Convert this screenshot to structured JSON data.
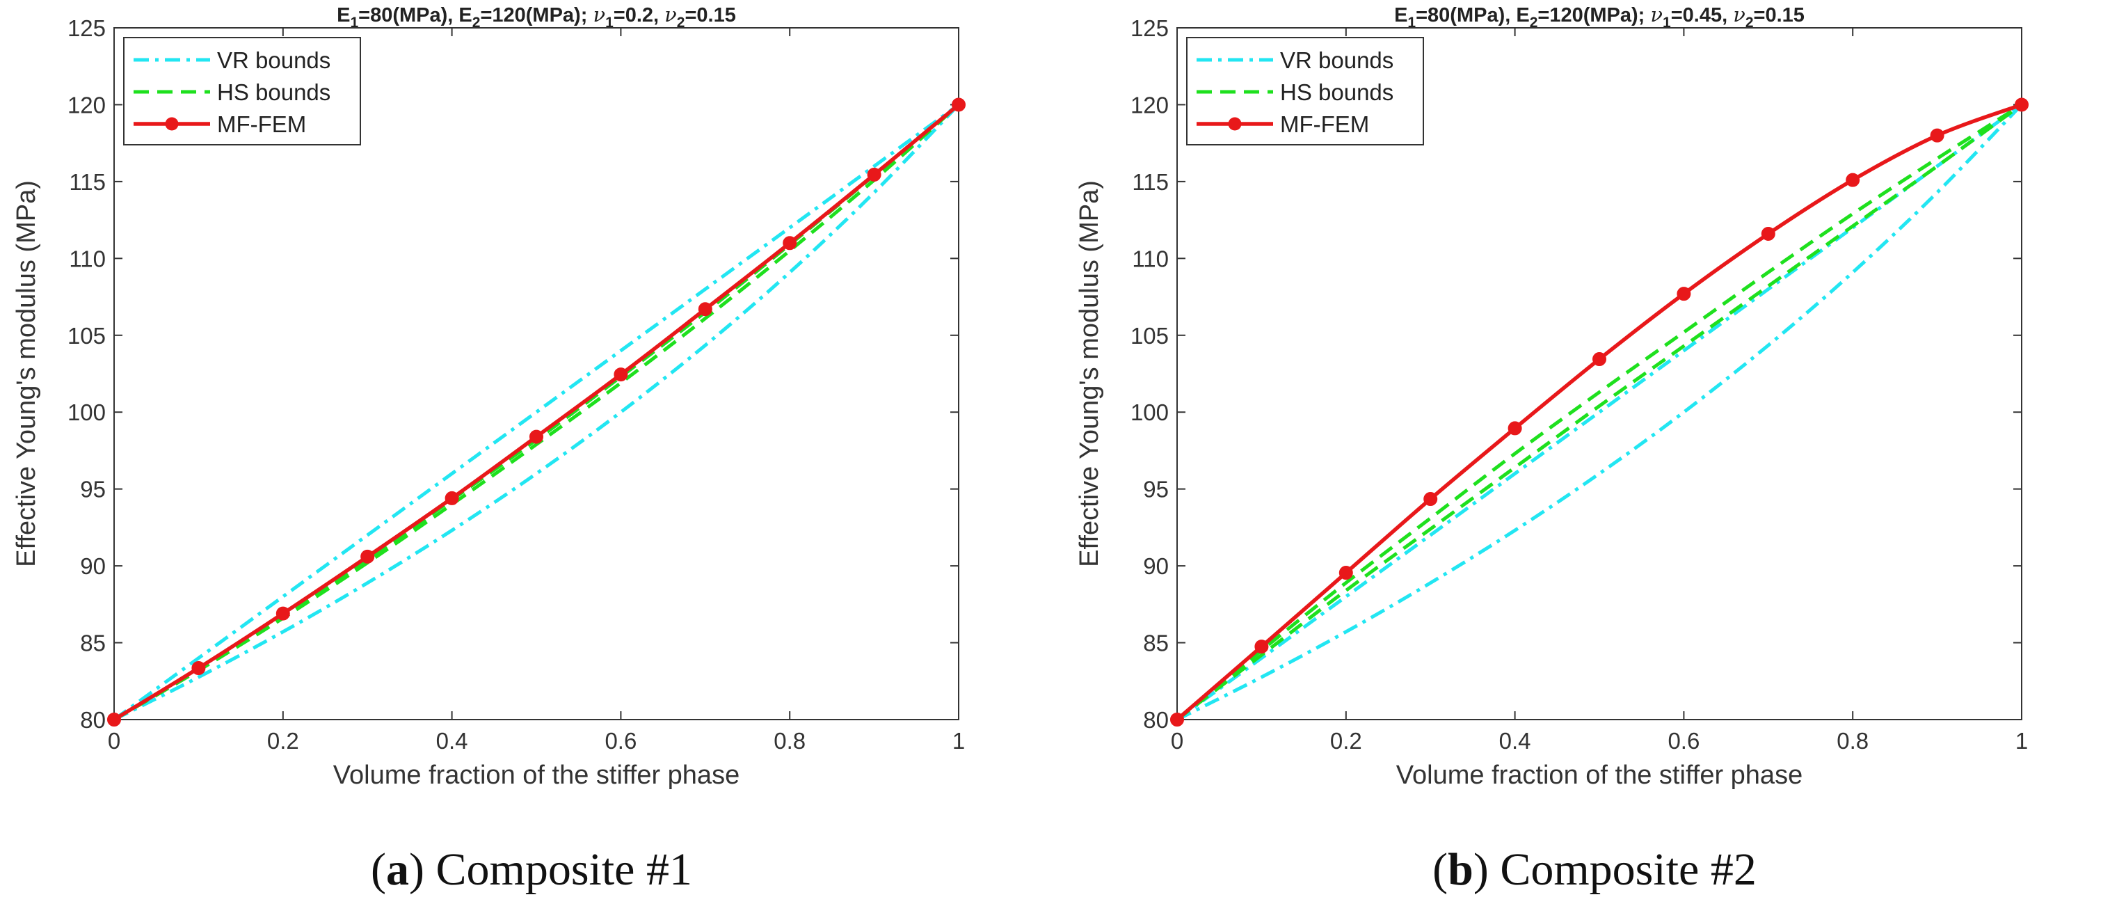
{
  "chart_data": [
    {
      "type": "line",
      "title_parts": {
        "e1_sym": "E",
        "e1_sub": "1",
        "e1_val": "=80(MPa), ",
        "e2_sym": "E",
        "e2_sub": "2",
        "e2_val": "=120(MPa); ",
        "nu1_sym": "ν",
        "nu1_sub": "1",
        "nu1_val": "=0.2, ",
        "nu2_sym": "ν",
        "nu2_sub": "2",
        "nu2_val": "=0.15"
      },
      "xlabel": "Volume fraction of the stiffer phase",
      "ylabel": "Effective Young's modulus (MPa)",
      "xlim": [
        0,
        1
      ],
      "ylim": [
        80,
        125
      ],
      "xticks": [
        0,
        0.2,
        0.4,
        0.6,
        0.8,
        1
      ],
      "xtick_labels": [
        "0",
        "0.2",
        "0.4",
        "0.6",
        "0.8",
        "1"
      ],
      "yticks": [
        80,
        85,
        90,
        95,
        100,
        105,
        110,
        115,
        120,
        125
      ],
      "ytick_labels": [
        "80",
        "85",
        "90",
        "95",
        "100",
        "105",
        "110",
        "115",
        "120",
        "125"
      ],
      "x": [
        0,
        0.1,
        0.2,
        0.3,
        0.4,
        0.5,
        0.6,
        0.7,
        0.8,
        0.9,
        1
      ],
      "legend_position": "top-left",
      "series": [
        {
          "name": "VR bounds",
          "role": "upper",
          "legend": true,
          "style": "dashdot",
          "color": "#22e6f2",
          "values": [
            80,
            84,
            88,
            92,
            96,
            100,
            104,
            108,
            112,
            116,
            120
          ]
        },
        {
          "name": "VR bounds",
          "role": "lower",
          "legend": false,
          "style": "dashdot",
          "color": "#22e6f2",
          "values": [
            80,
            82.76,
            85.71,
            88.89,
            92.31,
            96.0,
            100.0,
            104.35,
            109.09,
            114.29,
            120
          ]
        },
        {
          "name": "HS bounds",
          "role": "upper",
          "legend": true,
          "style": "dashed",
          "color": "#1ee01e",
          "values": [
            80,
            83.3,
            86.8,
            90.4,
            94.3,
            98.2,
            102.3,
            106.5,
            110.9,
            115.4,
            120
          ]
        },
        {
          "name": "HS bounds",
          "role": "lower",
          "legend": false,
          "style": "dashed",
          "color": "#1ee01e",
          "values": [
            80,
            83.2,
            86.6,
            90.2,
            94.0,
            97.9,
            101.9,
            106.1,
            110.5,
            115.1,
            120
          ]
        },
        {
          "name": "MF-FEM",
          "role": "result",
          "legend": true,
          "style": "solid-marker",
          "color": "#e8181a",
          "values": [
            80,
            83.35,
            86.9,
            90.6,
            94.4,
            98.4,
            102.45,
            106.7,
            111.0,
            115.45,
            120
          ]
        }
      ],
      "caption": {
        "letter": "a",
        "text": " Composite #1"
      }
    },
    {
      "type": "line",
      "title_parts": {
        "e1_sym": "E",
        "e1_sub": "1",
        "e1_val": "=80(MPa), ",
        "e2_sym": "E",
        "e2_sub": "2",
        "e2_val": "=120(MPa); ",
        "nu1_sym": "ν",
        "nu1_sub": "1",
        "nu1_val": "=0.45, ",
        "nu2_sym": "ν",
        "nu2_sub": "2",
        "nu2_val": "=0.15"
      },
      "xlabel": "Volume fraction of the stiffer phase",
      "ylabel": "Effective Young's modulus (MPa)",
      "xlim": [
        0,
        1
      ],
      "ylim": [
        80,
        125
      ],
      "xticks": [
        0,
        0.2,
        0.4,
        0.6,
        0.8,
        1
      ],
      "xtick_labels": [
        "0",
        "0.2",
        "0.4",
        "0.6",
        "0.8",
        "1"
      ],
      "yticks": [
        80,
        85,
        90,
        95,
        100,
        105,
        110,
        115,
        120,
        125
      ],
      "ytick_labels": [
        "80",
        "85",
        "90",
        "95",
        "100",
        "105",
        "110",
        "115",
        "120",
        "125"
      ],
      "x": [
        0,
        0.1,
        0.2,
        0.3,
        0.4,
        0.5,
        0.6,
        0.7,
        0.8,
        0.9,
        1
      ],
      "legend_position": "top-left",
      "series": [
        {
          "name": "VR bounds",
          "role": "upper",
          "legend": true,
          "style": "dashdot",
          "color": "#22e6f2",
          "values": [
            80,
            84,
            88,
            92,
            96,
            100,
            104,
            108,
            112,
            116,
            120
          ]
        },
        {
          "name": "VR bounds",
          "role": "lower",
          "legend": false,
          "style": "dashdot",
          "color": "#22e6f2",
          "values": [
            80,
            82.76,
            85.71,
            88.89,
            92.31,
            96.0,
            100.0,
            104.35,
            109.09,
            114.29,
            120
          ]
        },
        {
          "name": "HS bounds",
          "role": "upper",
          "legend": true,
          "style": "dashed",
          "color": "#1ee01e",
          "values": [
            80,
            84.5,
            88.9,
            93.1,
            97.3,
            101.3,
            105.2,
            109.1,
            112.9,
            116.5,
            120
          ]
        },
        {
          "name": "HS bounds",
          "role": "lower",
          "legend": false,
          "style": "dashed",
          "color": "#1ee01e",
          "values": [
            80,
            84.2,
            88.4,
            92.4,
            96.4,
            100.4,
            104.3,
            108.2,
            112.1,
            116.0,
            120
          ]
        },
        {
          "name": "MF-FEM",
          "role": "result",
          "legend": true,
          "style": "solid-marker",
          "color": "#e8181a",
          "values": [
            80,
            84.75,
            89.55,
            94.35,
            98.95,
            103.45,
            107.7,
            111.6,
            115.1,
            118.0,
            120
          ]
        }
      ],
      "caption": {
        "letter": "b",
        "text": " Composite #2"
      }
    }
  ]
}
